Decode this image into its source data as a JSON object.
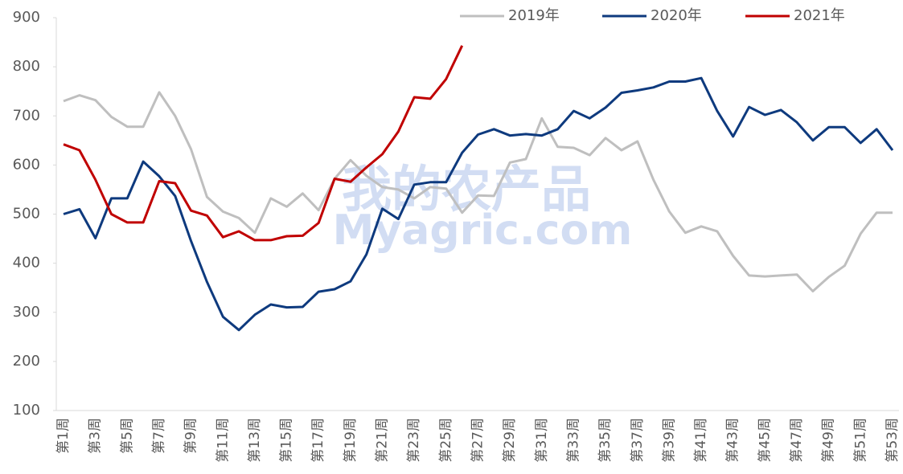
{
  "chart_data": {
    "type": "line",
    "categories": [
      "第1周",
      null,
      "第3周",
      null,
      "第5周",
      null,
      "第7周",
      null,
      "第9周",
      null,
      "第11周",
      null,
      "第13周",
      null,
      "第15周",
      null,
      "第17周",
      null,
      "第19周",
      null,
      "第21周",
      null,
      "第23周",
      null,
      "第25周",
      null,
      "第27周",
      null,
      "第29周",
      null,
      "第31周",
      null,
      "第33周",
      null,
      "第35周",
      null,
      "第37周",
      null,
      "第39周",
      null,
      "第41周",
      null,
      "第43周",
      null,
      "第45周",
      null,
      "第47周",
      null,
      "第49周",
      null,
      "第51周",
      null,
      "第53周"
    ],
    "series": [
      {
        "name": "2019年",
        "color": "#bfbfbf",
        "values": [
          730,
          742,
          732,
          698,
          678,
          678,
          748,
          700,
          632,
          535,
          505,
          492,
          462,
          532,
          515,
          542,
          508,
          572,
          610,
          578,
          555,
          550,
          532,
          555,
          552,
          503,
          538,
          537,
          605,
          612,
          695,
          637,
          635,
          620,
          655,
          630,
          648,
          570,
          505,
          462,
          475,
          465,
          415,
          375,
          373,
          375,
          377,
          343,
          372,
          395,
          460,
          503,
          503
        ]
      },
      {
        "name": "2020年",
        "color": "#0e3a7e",
        "values": [
          500,
          510,
          451,
          532,
          532,
          607,
          577,
          537,
          445,
          362,
          291,
          264,
          295,
          316,
          310,
          311,
          342,
          347,
          363,
          418,
          511,
          490,
          560,
          565,
          565,
          625,
          662,
          673,
          660,
          663,
          660,
          673,
          710,
          695,
          717,
          747,
          752,
          758,
          770,
          770,
          777,
          710,
          658,
          718,
          702,
          712,
          687,
          650,
          677,
          677,
          645,
          673,
          630
        ]
      },
      {
        "name": "2021年",
        "color": "#c00000",
        "values": [
          642,
          630,
          570,
          500,
          483,
          483,
          567,
          563,
          507,
          497,
          453,
          465,
          447,
          447,
          455,
          456,
          482,
          572,
          566,
          595,
          622,
          668,
          738,
          735,
          775,
          843,
          null,
          null,
          null,
          null,
          null,
          null,
          null,
          null,
          null,
          null,
          null,
          null,
          null,
          null,
          null,
          null,
          null,
          null,
          null,
          null,
          null,
          null,
          null,
          null,
          null,
          null,
          null
        ]
      }
    ],
    "ylim": [
      100,
      900
    ],
    "yticks": [
      100,
      200,
      300,
      400,
      500,
      600,
      700,
      800,
      900
    ],
    "watermark": [
      "我的农产品",
      "Myagric.com"
    ],
    "legend": "top-right"
  }
}
